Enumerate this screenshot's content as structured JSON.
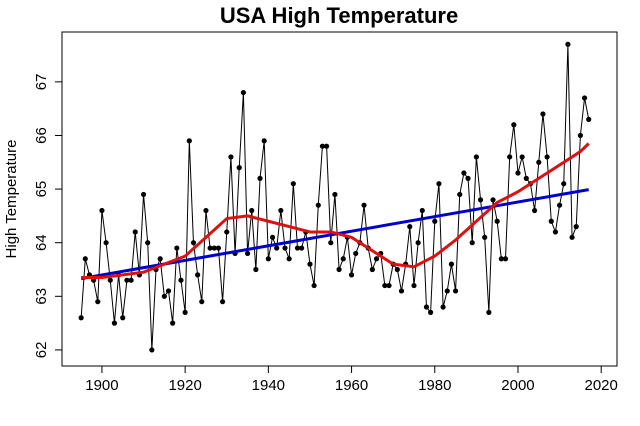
{
  "chart_data": {
    "type": "line",
    "title": "USA High Temperature",
    "y_label": "High Temperature",
    "xlim": [
      1890.4,
      2023.8
    ],
    "ylim": [
      61.7,
      67.93
    ],
    "xticks": [
      1900,
      1920,
      1940,
      1960,
      1980,
      2000,
      2020
    ],
    "yticks": [
      62,
      63,
      64,
      65,
      66,
      67
    ],
    "grid": false,
    "series": [
      {
        "color": "#000000",
        "markers": true,
        "width": 1,
        "x": [
          1895,
          1896,
          1897,
          1898,
          1899,
          1900,
          1901,
          1902,
          1903,
          1904,
          1905,
          1906,
          1907,
          1908,
          1909,
          1910,
          1911,
          1912,
          1913,
          1914,
          1915,
          1916,
          1917,
          1918,
          1919,
          1920,
          1921,
          1922,
          1923,
          1924,
          1925,
          1926,
          1927,
          1928,
          1929,
          1930,
          1931,
          1932,
          1933,
          1934,
          1935,
          1936,
          1937,
          1938,
          1939,
          1940,
          1941,
          1942,
          1943,
          1944,
          1945,
          1946,
          1947,
          1948,
          1949,
          1950,
          1951,
          1952,
          1953,
          1954,
          1955,
          1956,
          1957,
          1958,
          1959,
          1960,
          1961,
          1962,
          1963,
          1964,
          1965,
          1966,
          1967,
          1968,
          1969,
          1970,
          1971,
          1972,
          1973,
          1974,
          1975,
          1976,
          1977,
          1978,
          1979,
          1980,
          1981,
          1982,
          1983,
          1984,
          1985,
          1986,
          1987,
          1988,
          1989,
          1990,
          1991,
          1992,
          1993,
          1994,
          1995,
          1996,
          1997,
          1998,
          1999,
          2000,
          2001,
          2002,
          2003,
          2004,
          2005,
          2006,
          2007,
          2008,
          2009,
          2010,
          2011,
          2012,
          2013,
          2014,
          2015,
          2016,
          2017
        ],
        "values": [
          62.6,
          63.7,
          63.4,
          63.3,
          62.9,
          64.6,
          64.0,
          63.3,
          62.5,
          63.4,
          62.6,
          63.3,
          63.3,
          64.2,
          63.4,
          64.9,
          64.0,
          62.0,
          63.5,
          63.7,
          63.0,
          63.1,
          62.5,
          63.9,
          63.3,
          62.7,
          65.9,
          64.0,
          63.4,
          62.9,
          64.6,
          63.9,
          63.9,
          63.9,
          62.9,
          64.2,
          65.6,
          63.8,
          65.4,
          66.8,
          63.8,
          64.6,
          63.5,
          65.2,
          65.9,
          63.7,
          64.1,
          63.9,
          64.6,
          63.9,
          63.7,
          65.1,
          63.9,
          63.9,
          64.2,
          63.6,
          63.2,
          64.7,
          65.8,
          65.8,
          64.0,
          64.9,
          63.5,
          63.7,
          64.1,
          63.4,
          63.8,
          64.0,
          64.7,
          63.9,
          63.5,
          63.7,
          63.8,
          63.2,
          63.2,
          63.6,
          63.5,
          63.1,
          63.6,
          64.3,
          63.2,
          64.0,
          64.6,
          62.8,
          62.7,
          64.4,
          65.1,
          62.8,
          63.1,
          63.6,
          63.1,
          64.9,
          65.3,
          65.2,
          64.0,
          65.6,
          64.8,
          64.1,
          62.7,
          64.8,
          64.4,
          63.7,
          63.7,
          65.6,
          66.2,
          65.3,
          65.6,
          65.2,
          65.1,
          64.6,
          65.5,
          66.4,
          65.6,
          64.4,
          64.2,
          64.7,
          65.1,
          67.7,
          64.1,
          64.3,
          66.0,
          66.7,
          66.3
        ]
      },
      {
        "color": "#0000cd",
        "markers": false,
        "width": 3,
        "x": [
          1895,
          2017
        ],
        "values": [
          63.33,
          64.99
        ]
      },
      {
        "color": "#dd1111",
        "markers": false,
        "width": 3,
        "x": [
          1895,
          1900,
          1905,
          1910,
          1915,
          1920,
          1925,
          1930,
          1935,
          1940,
          1945,
          1950,
          1955,
          1960,
          1965,
          1970,
          1975,
          1980,
          1985,
          1990,
          1995,
          2000,
          2005,
          2010,
          2015,
          2017
        ],
        "values": [
          63.35,
          63.35,
          63.4,
          63.45,
          63.6,
          63.75,
          64.1,
          64.45,
          64.5,
          64.4,
          64.3,
          64.2,
          64.2,
          64.1,
          63.85,
          63.6,
          63.55,
          63.75,
          64.05,
          64.4,
          64.75,
          64.95,
          65.2,
          65.45,
          65.7,
          65.85
        ]
      }
    ]
  }
}
